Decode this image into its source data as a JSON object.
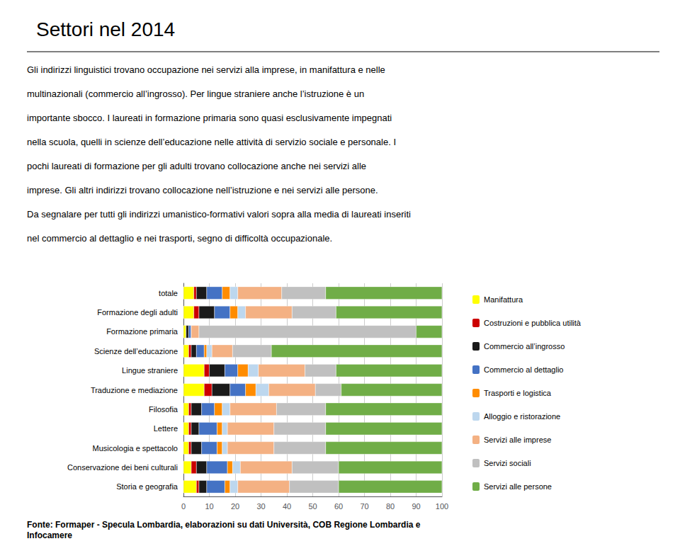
{
  "chart_data": {
    "type": "bar",
    "title": "Settori nel 2014",
    "annotations": [
      "Gli indirizzi linguistici trovano occupazione nei servizi alla imprese, in manifattura e nelle",
      "multinazionali (commercio all’ingrosso). Per lingue straniere anche l’istruzione è un",
      "importante sbocco. I laureati in formazione primaria sono quasi esclusivamente impegnati",
      "nella scuola, quelli in scienze dell’educazione nelle attività di servizio sociale e personale. I",
      "pochi laureati di formazione per gli adulti trovano collocazione anche nei servizi alle",
      "imprese. Gli altri indirizzi trovano collocazione nell’istruzione e nei servizi alle persone.",
      "Da segnalare per tutti gli indirizzi umanistico-formativi valori sopra alla media di laureati inseriti",
      "nel commercio al dettaglio e nei trasporti, segno di difficoltà occupazionale."
    ],
    "source": "Fonte: Formaper - Specula Lombardia, elaborazioni su dati Università, COB Regione Lombardia e\nInfocamere",
    "categories": [
      "Storia e geografia",
      "Conservazione dei beni culturali",
      "Musicologia e spettacolo",
      "Lettere",
      "Filosofia",
      "Traduzione e mediazione",
      "Lingue straniere",
      "Scienze dell’educazione",
      "Formazione primaria",
      "Formazione degli adulti",
      "totale"
    ],
    "series": [
      {
        "name": "Manifattura",
        "color": "#FFFF00",
        "values": [
          5,
          3,
          2,
          2,
          2,
          8,
          8,
          2,
          1,
          4,
          4
        ]
      },
      {
        "name": "Costruzioni e pubblica utilità",
        "color": "#CC0000",
        "values": [
          1,
          2,
          1,
          1,
          1,
          3,
          2,
          1,
          0,
          2,
          1
        ]
      },
      {
        "name": "Commercio all’ingrosso",
        "color": "#1A1A1A",
        "values": [
          3,
          4,
          4,
          3,
          4,
          7,
          6,
          2,
          1,
          6,
          4
        ]
      },
      {
        "name": "Commercio al dettaglio",
        "color": "#4472C4",
        "values": [
          7,
          8,
          6,
          7,
          5,
          6,
          5,
          3,
          1,
          6,
          6
        ]
      },
      {
        "name": "Trasporti e logistica",
        "color": "#FF8C00",
        "values": [
          2,
          2,
          2,
          2,
          3,
          4,
          4,
          1,
          0,
          3,
          3
        ]
      },
      {
        "name": "Alloggio e ristorazione",
        "color": "#BDD7EE",
        "values": [
          3,
          3,
          2,
          2,
          3,
          5,
          4,
          2,
          0,
          3,
          3
        ]
      },
      {
        "name": "Servizi alle imprese",
        "color": "#F4B183",
        "values": [
          20,
          20,
          18,
          18,
          18,
          18,
          18,
          8,
          3,
          18,
          17
        ]
      },
      {
        "name": "Servizi sociali",
        "color": "#C0C0C0",
        "values": [
          19,
          18,
          20,
          20,
          19,
          10,
          12,
          15,
          84,
          17,
          17
        ]
      },
      {
        "name": "Servizi alle persone",
        "color": "#70AD47",
        "values": [
          40,
          40,
          45,
          45,
          45,
          39,
          41,
          66,
          10,
          41,
          45
        ]
      }
    ],
    "xlim": [
      0,
      100
    ],
    "xticks": [
      0,
      10,
      20,
      30,
      40,
      50,
      60,
      70,
      80,
      90,
      100
    ],
    "grid": true,
    "legend": "right",
    "orientation": "horizontal",
    "stacked": true
  }
}
